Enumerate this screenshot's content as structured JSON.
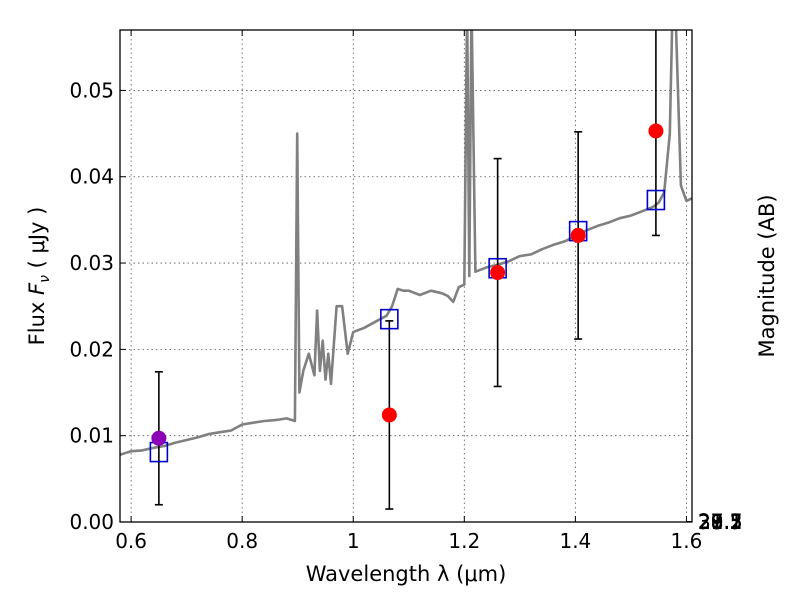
{
  "chart_data": {
    "type": "scatter",
    "xlabel": "Wavelength  λ (μm)",
    "ylabel": "Flux  F_ν  ( μJy )",
    "ylabel_parts": {
      "prefix": "Flux  ",
      "symbol": "F",
      "subscript": "ν",
      "unit": "  ( μJy )"
    },
    "y2label": "Magnitude (AB)",
    "xlim": [
      0.58,
      1.61
    ],
    "ylim": [
      0.0,
      0.057
    ],
    "grid": true,
    "x_ticks": [
      0.6,
      0.8,
      1.0,
      1.2,
      1.4,
      1.6
    ],
    "x_tick_labels": [
      "0.6",
      "0.8",
      "1",
      "1.2",
      "1.4",
      "1.6"
    ],
    "y_ticks": [
      0.0,
      0.01,
      0.02,
      0.03,
      0.04,
      0.05
    ],
    "y_tick_labels": [
      "0.00",
      "0.01",
      "0.02",
      "0.03",
      "0.04",
      "0.05"
    ],
    "y2_ticks": [
      27.1,
      27.3,
      27.5,
      27.7,
      28,
      28.2,
      28.5,
      29,
      29.5,
      30,
      31
    ],
    "y2_tick_labels": [
      "27.1",
      "27.3",
      "27.5",
      "27.7",
      "28",
      "28.2",
      "28.5",
      "29",
      "29.5",
      "30",
      "31"
    ],
    "colors": {
      "spectrum": "#808080",
      "observed": "#ff0000",
      "observed_first": "#8b00b5",
      "model": "#0000cc",
      "errorbar": "#000000",
      "grid": "#555555"
    },
    "series": [
      {
        "name": "model spectrum",
        "kind": "line",
        "x": [
          0.58,
          0.6,
          0.62,
          0.64,
          0.66,
          0.68,
          0.7,
          0.72,
          0.74,
          0.76,
          0.78,
          0.8,
          0.82,
          0.84,
          0.86,
          0.88,
          0.895,
          0.899,
          0.903,
          0.91,
          0.92,
          0.93,
          0.935,
          0.94,
          0.945,
          0.95,
          0.955,
          0.96,
          0.97,
          0.975,
          0.98,
          0.99,
          1.0,
          1.02,
          1.04,
          1.06,
          1.07,
          1.08,
          1.09,
          1.1,
          1.12,
          1.14,
          1.16,
          1.17,
          1.18,
          1.19,
          1.2,
          1.205,
          1.209,
          1.213,
          1.22,
          1.24,
          1.26,
          1.28,
          1.3,
          1.32,
          1.34,
          1.36,
          1.38,
          1.4,
          1.42,
          1.44,
          1.46,
          1.48,
          1.5,
          1.52,
          1.54,
          1.55,
          1.56,
          1.57,
          1.575,
          1.58,
          1.59,
          1.6,
          1.61
        ],
        "y": [
          0.0078,
          0.0082,
          0.0083,
          0.0086,
          0.0088,
          0.0092,
          0.0095,
          0.0098,
          0.0102,
          0.0104,
          0.0106,
          0.0113,
          0.0115,
          0.0117,
          0.0118,
          0.012,
          0.0117,
          0.045,
          0.015,
          0.0175,
          0.0195,
          0.017,
          0.0245,
          0.0175,
          0.021,
          0.0165,
          0.0195,
          0.016,
          0.025,
          0.025,
          0.025,
          0.0195,
          0.022,
          0.0225,
          0.0232,
          0.0239,
          0.025,
          0.027,
          0.0268,
          0.0268,
          0.0263,
          0.0268,
          0.0265,
          0.0262,
          0.0255,
          0.0272,
          0.0275,
          0.06,
          0.0285,
          0.06,
          0.029,
          0.0295,
          0.0298,
          0.0302,
          0.0308,
          0.031,
          0.0316,
          0.0321,
          0.0325,
          0.0331,
          0.0338,
          0.0343,
          0.0347,
          0.0352,
          0.0355,
          0.036,
          0.0365,
          0.037,
          0.0382,
          0.045,
          0.06,
          0.06,
          0.039,
          0.0372,
          0.0375
        ]
      },
      {
        "name": "model photometry",
        "kind": "open-square",
        "x": [
          0.65,
          1.065,
          1.26,
          1.405,
          1.545
        ],
        "y": [
          0.0081,
          0.0235,
          0.0294,
          0.0337,
          0.0373
        ]
      },
      {
        "name": "observed photometry",
        "kind": "filled-circle",
        "x": [
          0.65,
          1.065,
          1.26,
          1.405,
          1.545
        ],
        "y": [
          0.0097,
          0.0124,
          0.0289,
          0.0332,
          0.0453
        ],
        "yerr_low": [
          0.0077,
          0.0109,
          0.0132,
          0.012,
          0.0121
        ],
        "yerr_high": [
          0.0077,
          0.0109,
          0.0132,
          0.012,
          0.0121
        ]
      }
    ]
  }
}
